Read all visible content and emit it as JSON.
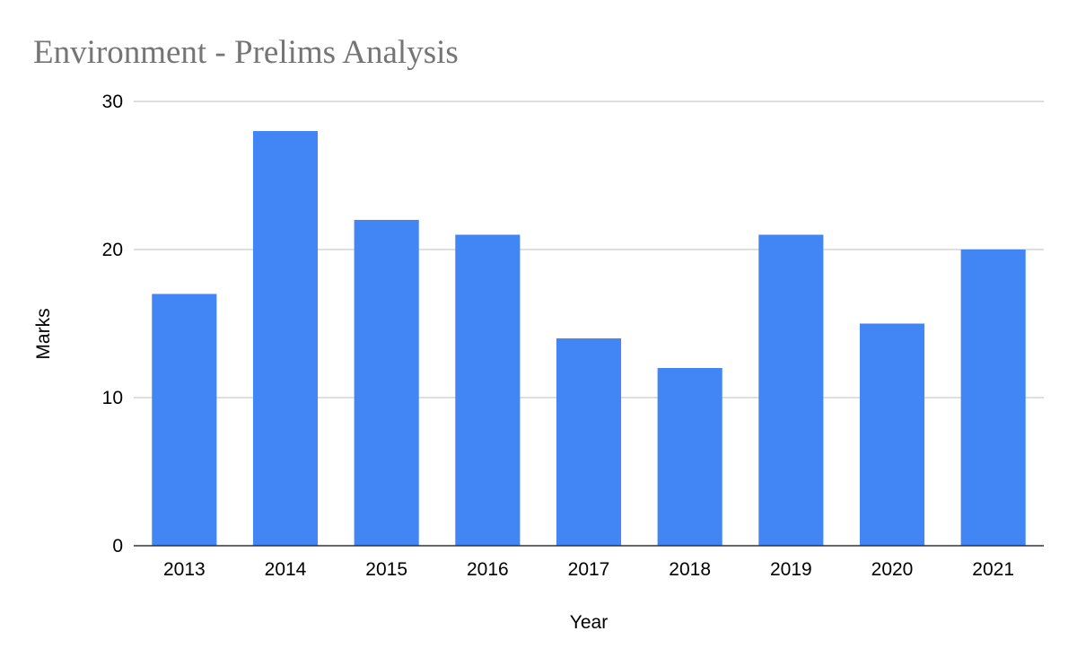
{
  "chart_data": {
    "type": "bar",
    "title": "Environment - Prelims Analysis",
    "xlabel": "Year",
    "ylabel": "Marks",
    "categories": [
      "2013",
      "2014",
      "2015",
      "2016",
      "2017",
      "2018",
      "2019",
      "2020",
      "2021"
    ],
    "series": [
      {
        "values": [
          17,
          28,
          22,
          21,
          14,
          12,
          21,
          15,
          20
        ],
        "color": "#4285f4"
      }
    ],
    "ylim": [
      0,
      30
    ],
    "yticks": [
      "0",
      "10",
      "20",
      "30"
    ],
    "grid": true,
    "legend": "none"
  }
}
